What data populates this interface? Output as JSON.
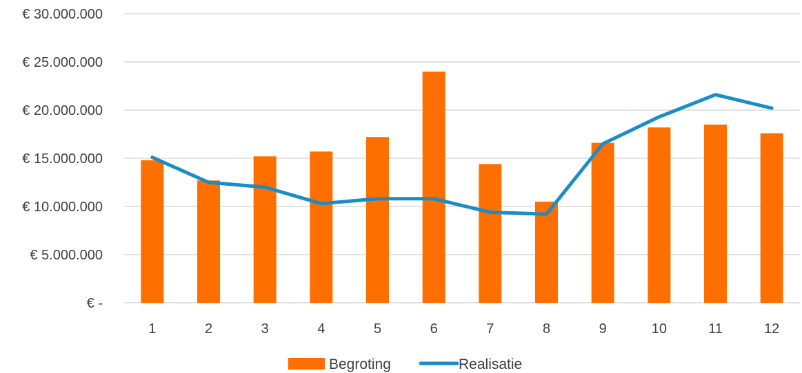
{
  "chart_data": {
    "type": "bar+line",
    "title": "",
    "xlabel": "",
    "ylabel": "",
    "categories": [
      "1",
      "2",
      "3",
      "4",
      "5",
      "6",
      "7",
      "8",
      "9",
      "10",
      "11",
      "12"
    ],
    "ylim": [
      0,
      30000000
    ],
    "yticks": [
      0,
      5000000,
      10000000,
      15000000,
      20000000,
      25000000,
      30000000
    ],
    "ytick_labels": [
      "€ -",
      "€ 5.000.000",
      "€ 10.000.000",
      "€ 15.000.000",
      "€ 20.000.000",
      "€ 25.000.000",
      "€ 30.000.000"
    ],
    "grid": true,
    "legend_position": "bottom",
    "series": [
      {
        "name": "Begroting",
        "type": "bar",
        "color": "#FF6F00",
        "values": [
          14800000,
          12700000,
          15200000,
          15700000,
          17200000,
          24000000,
          14400000,
          10500000,
          16600000,
          18200000,
          18500000,
          17600000
        ]
      },
      {
        "name": "Realisatie",
        "type": "line",
        "color": "#1A8DC6",
        "values": [
          15100000,
          12500000,
          12000000,
          10300000,
          10800000,
          10800000,
          9400000,
          9200000,
          16500000,
          19300000,
          21600000,
          20200000
        ]
      }
    ]
  }
}
